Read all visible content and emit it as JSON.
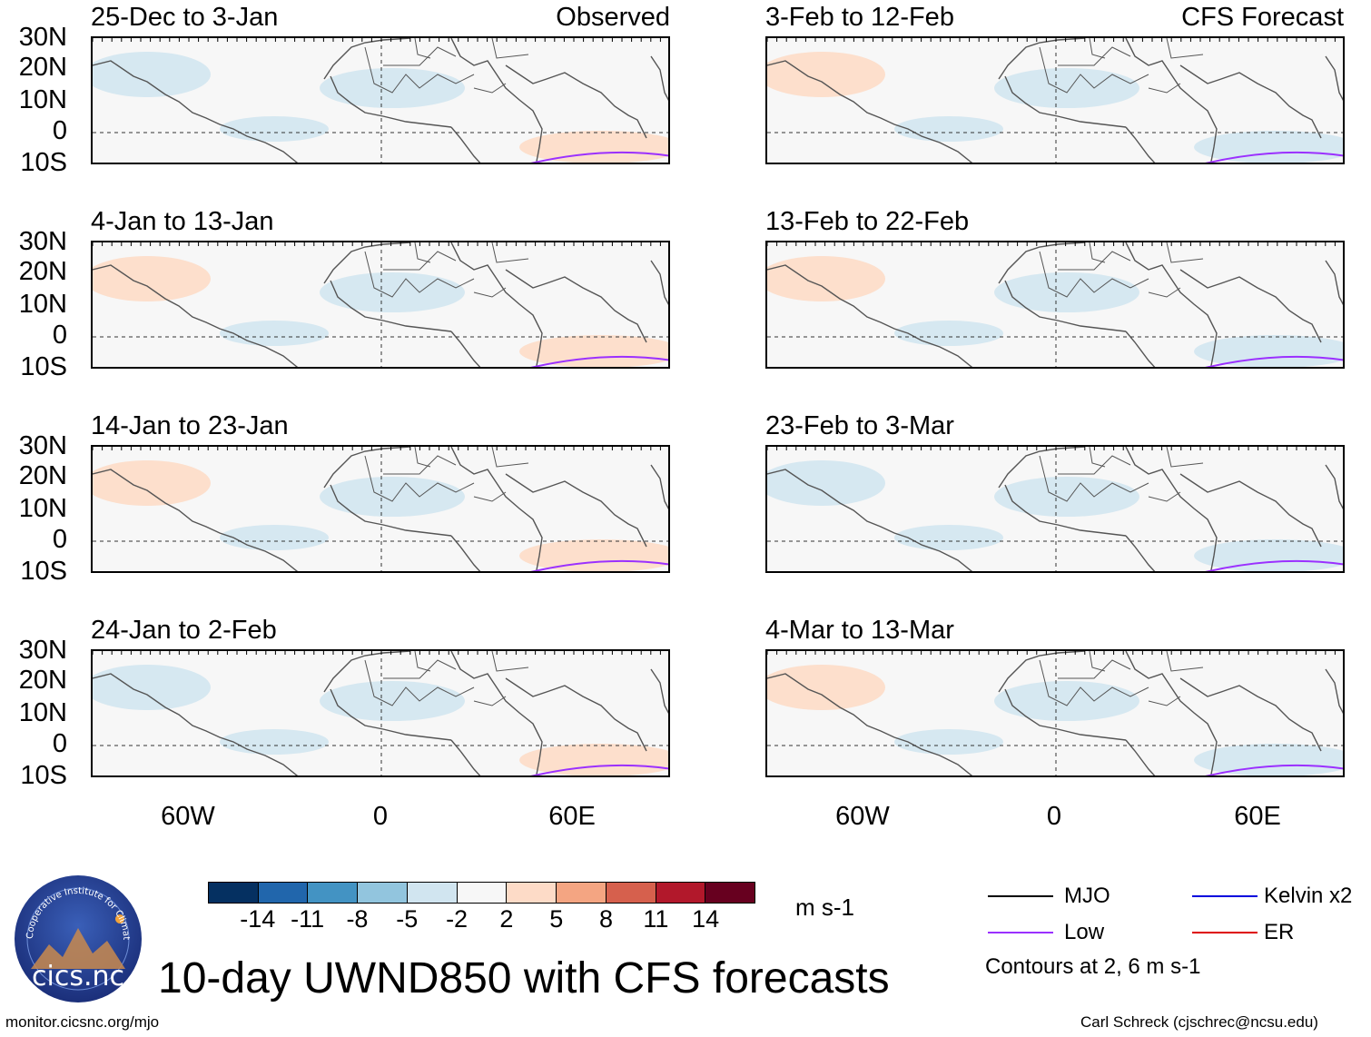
{
  "columns": {
    "left_tag": "Observed",
    "right_tag": "CFS Forecast"
  },
  "panels": [
    {
      "title": "25-Dec to 3-Jan"
    },
    {
      "title": "4-Jan to 13-Jan"
    },
    {
      "title": "14-Jan to 23-Jan"
    },
    {
      "title": "24-Jan to 2-Feb"
    },
    {
      "title": "3-Feb to 12-Feb"
    },
    {
      "title": "13-Feb to 22-Feb"
    },
    {
      "title": "23-Feb to 3-Mar"
    },
    {
      "title": "4-Mar to 13-Mar"
    }
  ],
  "lat_labels": [
    "30N",
    "20N",
    "10N",
    "0",
    "10S"
  ],
  "lon_labels": [
    "60W",
    "0",
    "60E"
  ],
  "colorbar": {
    "colors": [
      "#053061",
      "#2166ac",
      "#4393c3",
      "#92c5de",
      "#d1e5f0",
      "#f7f7f7",
      "#fddbc7",
      "#f4a582",
      "#d6604d",
      "#b2182b",
      "#67001f"
    ],
    "labels": [
      "-14",
      "-11",
      "-8",
      "-5",
      "-2",
      "2",
      "5",
      "8",
      "11",
      "14"
    ],
    "units": "m s-1"
  },
  "legend": {
    "items": [
      {
        "label": "MJO",
        "color": "#000000"
      },
      {
        "label": "Kelvin x2",
        "color": "#0000dd"
      },
      {
        "label": "Low",
        "color": "#9b30ff"
      },
      {
        "label": "ER",
        "color": "#dd0000"
      }
    ],
    "note": "Contours at 2, 6 m s-1"
  },
  "title": "10-day UWND850 with CFS forecasts",
  "logo_text": "cics.nc",
  "logo_ring_text": "Cooperative Institute for Climate and Satellites",
  "url": "monitor.cicsnc.org/mjo",
  "credit": "Carl Schreck (cjschrec@ncsu.edu)"
}
